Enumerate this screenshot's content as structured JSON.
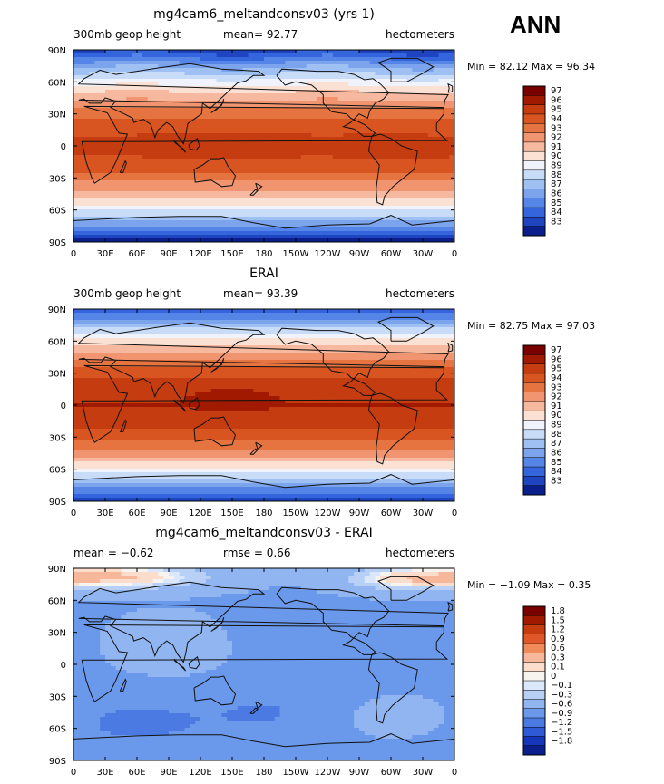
{
  "season": "ANN",
  "chart_data": [
    {
      "type": "heatmap",
      "title": "mg4cam6_meltandconsv03 (yrs 1)",
      "left_label": "300mb geop height",
      "center_label": "mean=  92.77",
      "right_label": "hectometers",
      "min_max": "Min =  82.12  Max =  96.34",
      "xticks": [
        "0",
        "30E",
        "60E",
        "90E",
        "120E",
        "150E",
        "180",
        "150W",
        "120W",
        "90W",
        "60W",
        "30W",
        "0"
      ],
      "yticks": [
        "90N",
        "60N",
        "30N",
        "0",
        "30S",
        "60S",
        "90S"
      ],
      "levels": [
        "97",
        "96",
        "95",
        "94",
        "93",
        "92",
        "91",
        "90",
        "89",
        "88",
        "87",
        "86",
        "85",
        "84",
        "83"
      ],
      "field": "model"
    },
    {
      "type": "heatmap",
      "title": "ERAI",
      "left_label": "300mb geop height",
      "center_label": "mean=  93.39",
      "right_label": "hectometers",
      "min_max": "Min =  82.75  Max =  97.03",
      "xticks": [
        "0",
        "30E",
        "60E",
        "90E",
        "120E",
        "150E",
        "180",
        "150W",
        "120W",
        "90W",
        "60W",
        "30W",
        "0"
      ],
      "yticks": [
        "90N",
        "60N",
        "30N",
        "0",
        "30S",
        "60S",
        "90S"
      ],
      "levels": [
        "97",
        "96",
        "95",
        "94",
        "93",
        "92",
        "91",
        "90",
        "89",
        "88",
        "87",
        "86",
        "85",
        "84",
        "83"
      ],
      "field": "obs"
    },
    {
      "type": "heatmap",
      "title": "mg4cam6_meltandconsv03 - ERAI",
      "left_label": "mean =  −0.62",
      "center_label": "rmse =   0.66",
      "right_label": "hectometers",
      "min_max": "Min =  −1.09  Max =   0.35",
      "xticks": [
        "0",
        "30E",
        "60E",
        "90E",
        "120E",
        "150E",
        "180",
        "150W",
        "120W",
        "90W",
        "60W",
        "30W",
        "0"
      ],
      "yticks": [
        "90N",
        "60N",
        "30N",
        "0",
        "30S",
        "60S",
        "90S"
      ],
      "levels": [
        "1.8",
        "1.5",
        "1.2",
        "0.9",
        "0.6",
        "0.3",
        "0.1",
        "0",
        "−0.1",
        "−0.3",
        "−0.6",
        "−0.9",
        "−1.2",
        "−1.5",
        "−1.8"
      ],
      "field": "diff"
    }
  ],
  "colors": {
    "abs_scale": [
      "#7a0000",
      "#a11a00",
      "#c43c10",
      "#d85420",
      "#e67440",
      "#f09570",
      "#f6b9a0",
      "#fbe1d4",
      "#f0f3fb",
      "#c9dcf7",
      "#9fc0f2",
      "#7ba4ec",
      "#5585e6",
      "#3565dc",
      "#1e44c0",
      "#0a1f8c"
    ],
    "diff_scale": [
      "#7a0000",
      "#a11a00",
      "#c43c10",
      "#e0582a",
      "#f08a5a",
      "#f7b79a",
      "#fcdccb",
      "#f7f4ef",
      "#dbe8fb",
      "#b8d0f5",
      "#90b5f0",
      "#6a98ea",
      "#4a7ae2",
      "#2e5ad8",
      "#1536b8",
      "#0a1f8c"
    ]
  }
}
